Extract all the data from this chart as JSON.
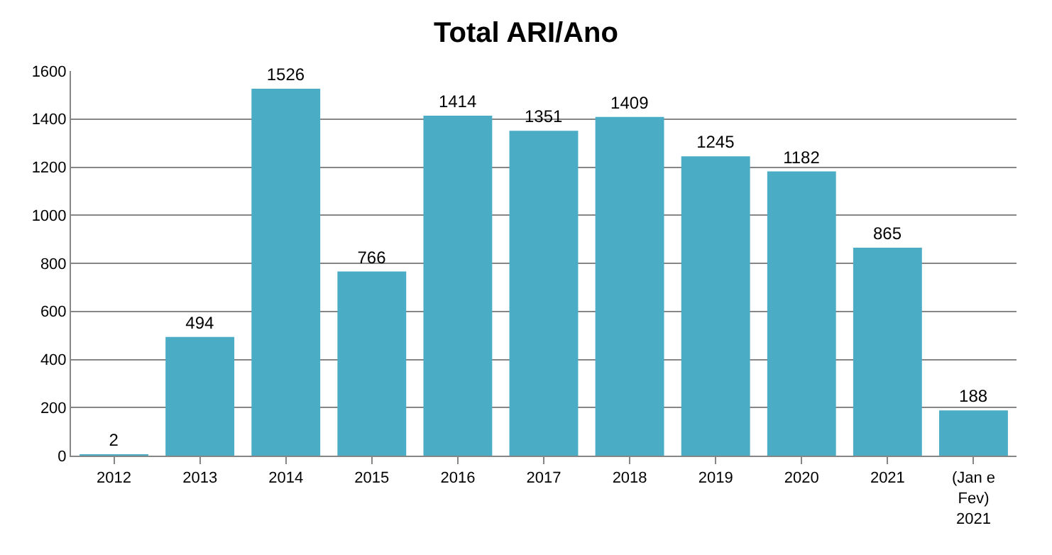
{
  "chart_data": {
    "type": "bar",
    "title": "Total ARI/Ano",
    "categories": [
      "2012",
      "2013",
      "2014",
      "2015",
      "2016",
      "2017",
      "2018",
      "2019",
      "2020",
      "2021",
      "(Jan e Fev) 2021"
    ],
    "values": [
      2,
      494,
      1526,
      766,
      1414,
      1351,
      1409,
      1245,
      1182,
      865,
      188
    ],
    "color": "#4bacc6",
    "ylim": [
      0,
      1600
    ],
    "yticks": [
      0,
      200,
      400,
      600,
      800,
      1000,
      1200,
      1400,
      1600
    ],
    "grid": "y",
    "data_labels": true,
    "legend": false
  }
}
